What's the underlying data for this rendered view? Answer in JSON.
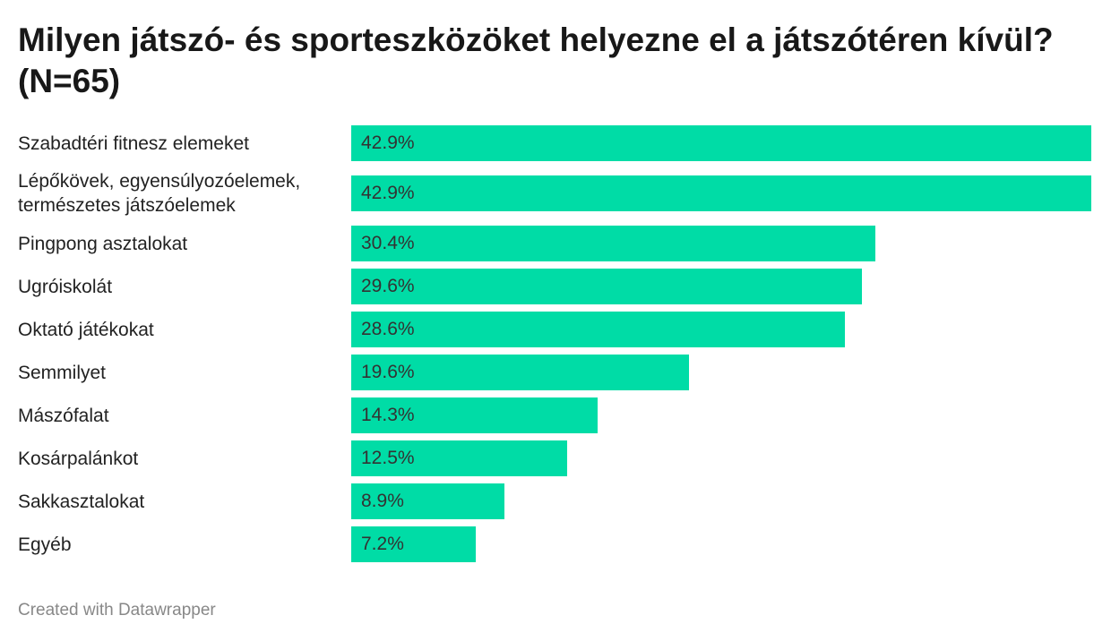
{
  "chart_data": {
    "type": "bar",
    "orientation": "horizontal",
    "title": "Milyen játszó- és sporteszközöket helyezne el a játszótéren kívül? (N=65)",
    "categories": [
      "Szabadtéri fitnesz elemeket",
      "Lépőkövek, egyensúlyozóelemek, természetes játszóelemek",
      "Pingpong asztalokat",
      "Ugróiskolát",
      "Oktató játékokat",
      "Semmilyet",
      "Mászófalat",
      "Kosárpalánkot",
      "Sakkasztalokat",
      "Egyéb"
    ],
    "values": [
      42.9,
      42.9,
      30.4,
      29.6,
      28.6,
      19.6,
      14.3,
      12.5,
      8.9,
      7.2
    ],
    "value_labels": [
      "42.9%",
      "42.9%",
      "30.4%",
      "29.6%",
      "28.6%",
      "19.6%",
      "14.3%",
      "12.5%",
      "8.9%",
      "7.2%"
    ],
    "xlim": [
      0,
      42.9
    ],
    "unit": "%",
    "bar_color": "#00dca6",
    "grid": false
  },
  "footer": "Created with Datawrapper"
}
